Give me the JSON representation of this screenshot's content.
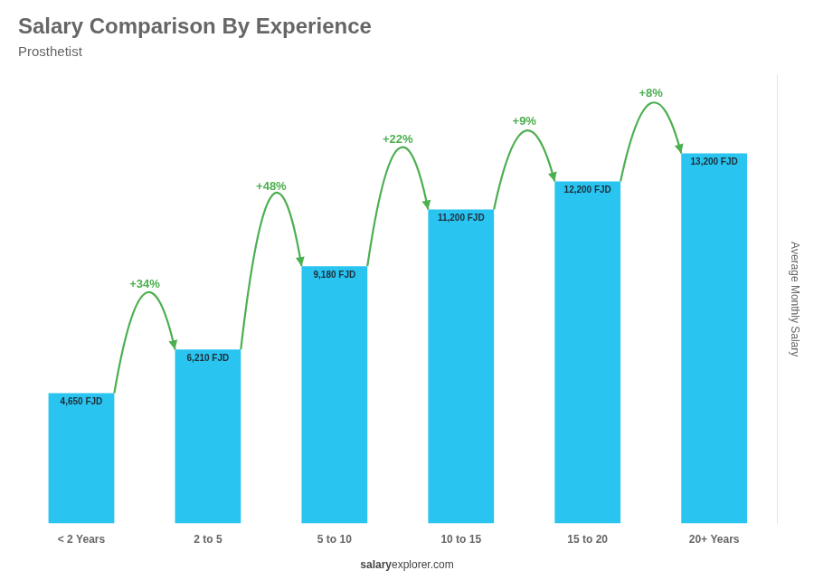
{
  "chart_data": {
    "type": "bar",
    "title": "Salary Comparison By Experience",
    "subtitle": "Prosthetist",
    "ylabel": "Average Monthly Salary",
    "categories": [
      "< 2 Years",
      "2 to 5",
      "5 to 10",
      "10 to 15",
      "15 to 20",
      "20+ Years"
    ],
    "values": [
      4650,
      6210,
      9180,
      11200,
      12200,
      13200
    ],
    "value_labels": [
      "4,650 FJD",
      "6,210 FJD",
      "9,180 FJD",
      "11,200 FJD",
      "12,200 FJD",
      "13,200 FJD"
    ],
    "data_labels": true,
    "annotations": [
      "+34%",
      "+48%",
      "+22%",
      "+9%",
      "+8%"
    ],
    "footer": [
      "salary",
      "explorer.com"
    ],
    "color": "#29C4F0",
    "ylim": [
      0,
      16000
    ],
    "grid": false,
    "tick_labels": "x"
  }
}
